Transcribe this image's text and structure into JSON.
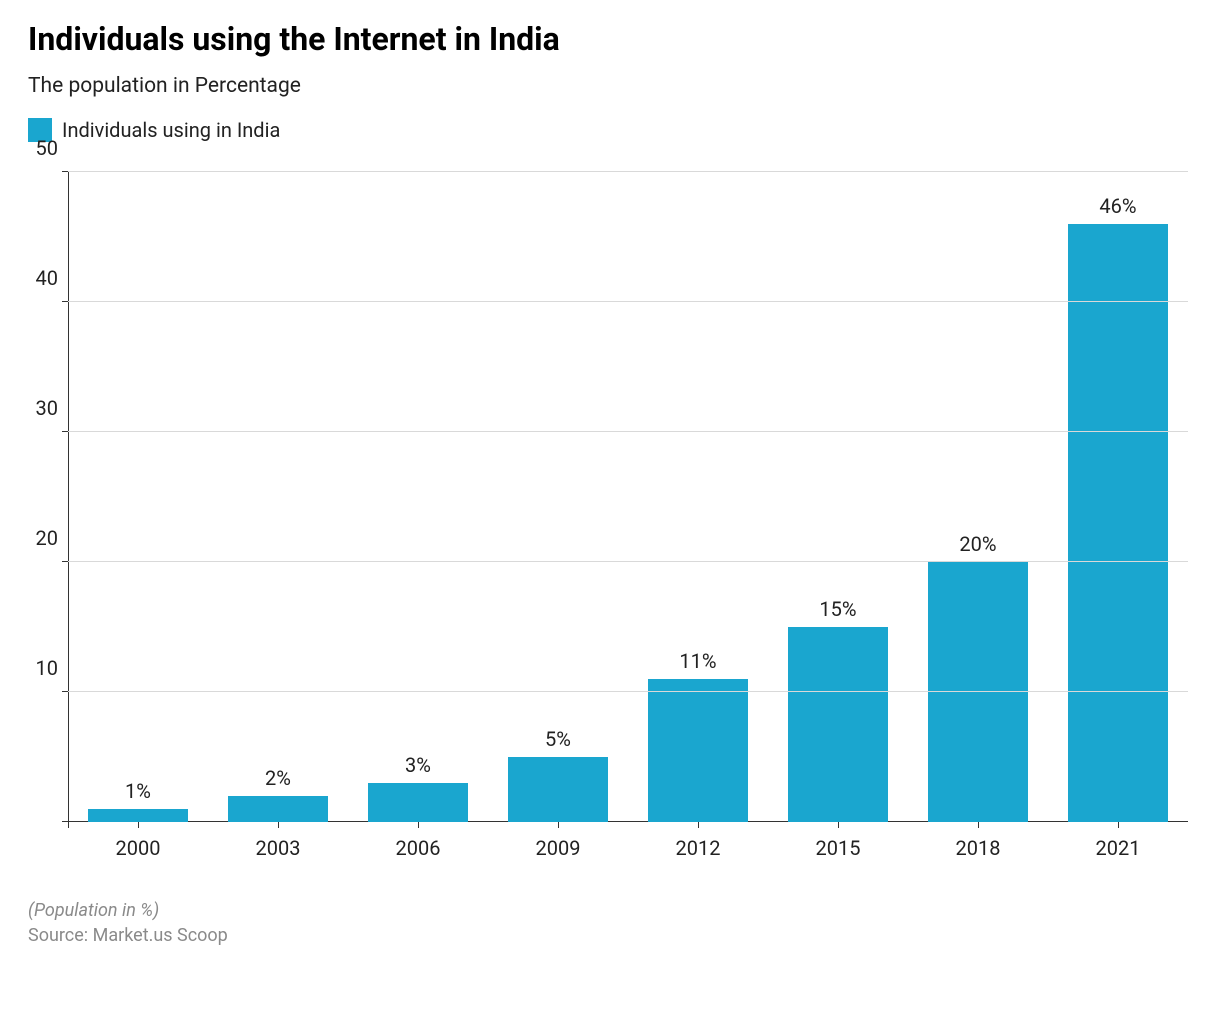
{
  "title": "Individuals using the Internet in India",
  "subtitle": "The population in Percentage",
  "legend": {
    "label": "Individuals using in India",
    "swatch_color": "#1aa6cf"
  },
  "chart": {
    "type": "bar",
    "categories": [
      "2000",
      "2003",
      "2006",
      "2009",
      "2012",
      "2015",
      "2018",
      "2021"
    ],
    "values": [
      1,
      2,
      3,
      5,
      11,
      15,
      20,
      46
    ],
    "value_labels": [
      "1%",
      "2%",
      "3%",
      "5%",
      "11%",
      "15%",
      "20%",
      "46%"
    ],
    "bar_color": "#1aa6cf",
    "background_color": "#ffffff",
    "grid_color": "#d9d9d9",
    "axis_color": "#333333",
    "ylim": [
      0,
      50
    ],
    "yticks": [
      10,
      20,
      30,
      40,
      50
    ],
    "ytick_labels": [
      "10",
      "20",
      "30",
      "40",
      "50"
    ],
    "bar_width_pct": 72,
    "title_fontsize": 32,
    "subtitle_fontsize": 21,
    "label_fontsize": 20,
    "tick_fontsize": 20
  },
  "footnote": "(Population in %)",
  "source": "Source: Market.us Scoop"
}
